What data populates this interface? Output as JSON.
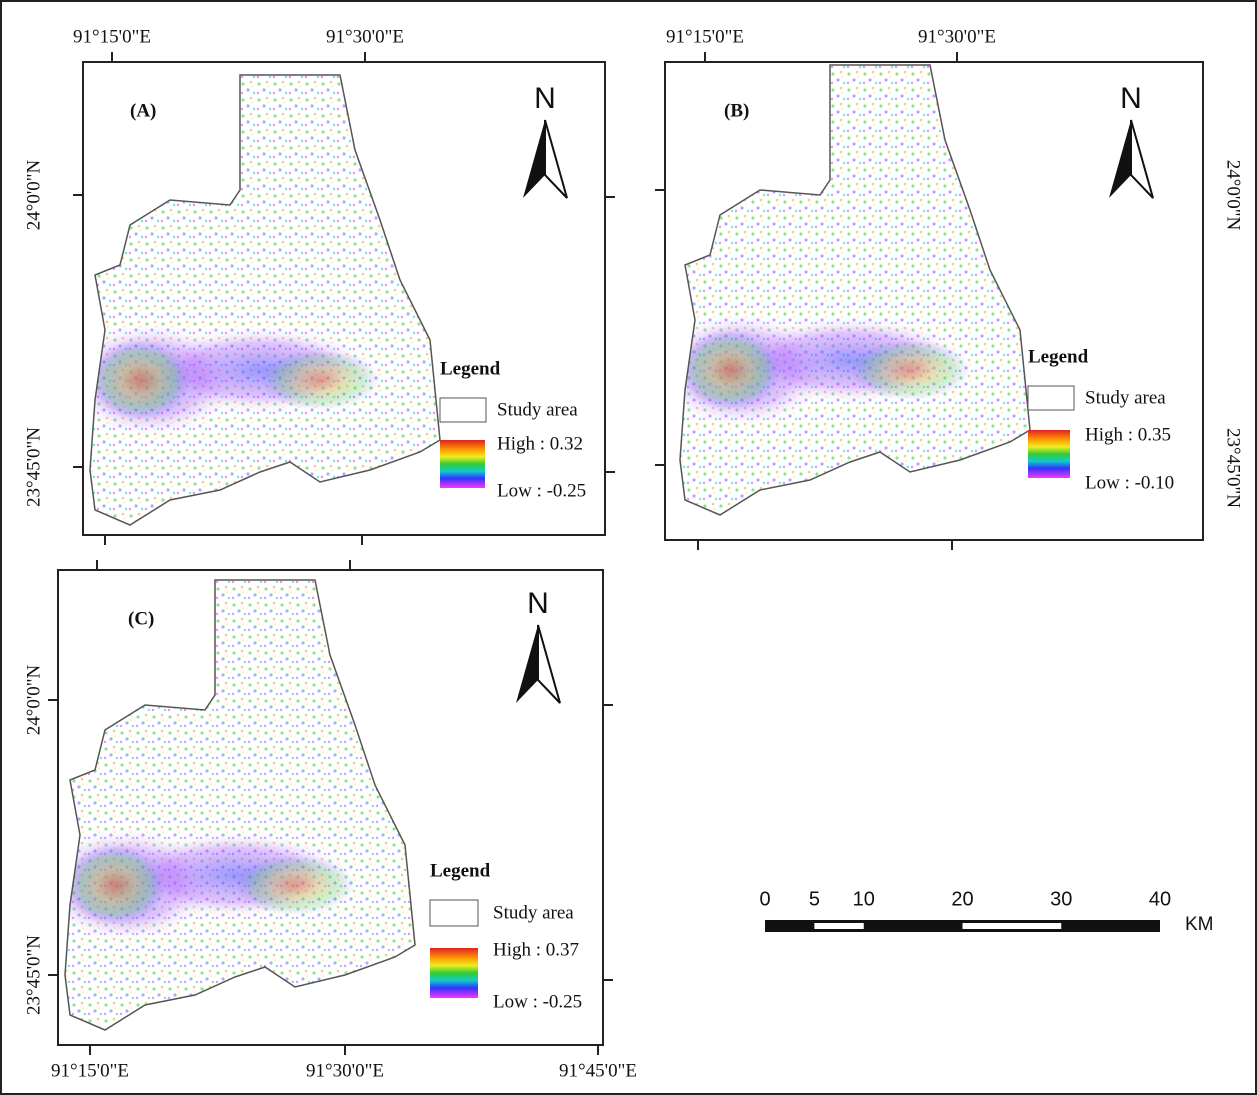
{
  "panels": [
    {
      "label": "(A)",
      "north": "N",
      "top_labels": [
        "91°15'0\"E",
        "91°30'0\"E"
      ],
      "left_labels": [
        "24°0'0\"N",
        "23°45'0\"N"
      ],
      "legend": {
        "title": "Legend",
        "study_area": "Study area",
        "high": "High : 0.32",
        "low": "Low : -0.25"
      }
    },
    {
      "label": "(B)",
      "north": "N",
      "top_labels": [
        "91°15'0\"E",
        "91°30'0\"E"
      ],
      "right_labels": [
        "24°0'0\"N",
        "23°45'0\"N"
      ],
      "legend": {
        "title": "Legend",
        "study_area": "Study area",
        "high": "High : 0.35",
        "low": "Low : -0.10"
      }
    },
    {
      "label": "(C)",
      "north": "N",
      "left_labels": [
        "24°0'0\"N",
        "23°45'0\"N"
      ],
      "bottom_labels": [
        "91°15'0\"E",
        "91°30'0\"E",
        "91°45'0\"E"
      ],
      "legend": {
        "title": "Legend",
        "study_area": "Study area",
        "high": "High : 0.37",
        "low": "Low : -0.25"
      }
    }
  ],
  "scale_bar": {
    "ticks": [
      0,
      5,
      10,
      20,
      30,
      40
    ],
    "unit": "KM"
  }
}
